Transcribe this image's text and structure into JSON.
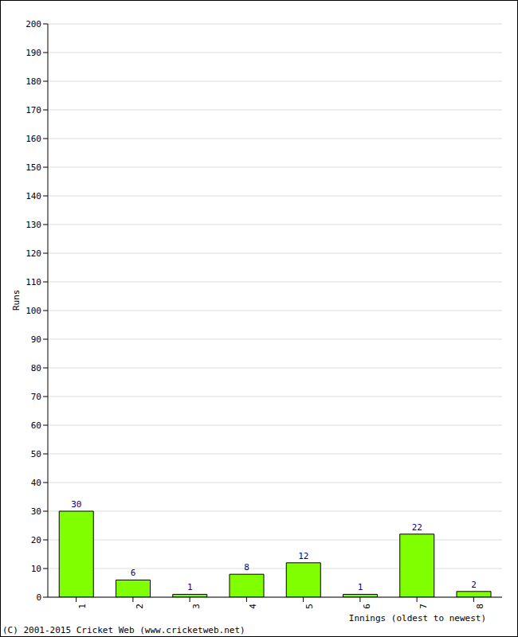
{
  "chart_data": {
    "type": "bar",
    "categories": [
      "1",
      "2",
      "3",
      "4",
      "5",
      "6",
      "7",
      "8"
    ],
    "values": [
      30,
      6,
      1,
      8,
      12,
      1,
      22,
      2
    ],
    "color": "#80ff00",
    "ylim": [
      0,
      200
    ],
    "yticks": [
      0,
      10,
      20,
      30,
      40,
      50,
      60,
      70,
      80,
      90,
      100,
      110,
      120,
      130,
      140,
      150,
      160,
      170,
      180,
      190,
      200
    ],
    "grid": true,
    "data_labels": true,
    "y_label": "Runs",
    "x_label": "Innings (oldest to newest)",
    "annotation": "(C) 2001-2015 Cricket Web (www.cricketweb.net)"
  }
}
